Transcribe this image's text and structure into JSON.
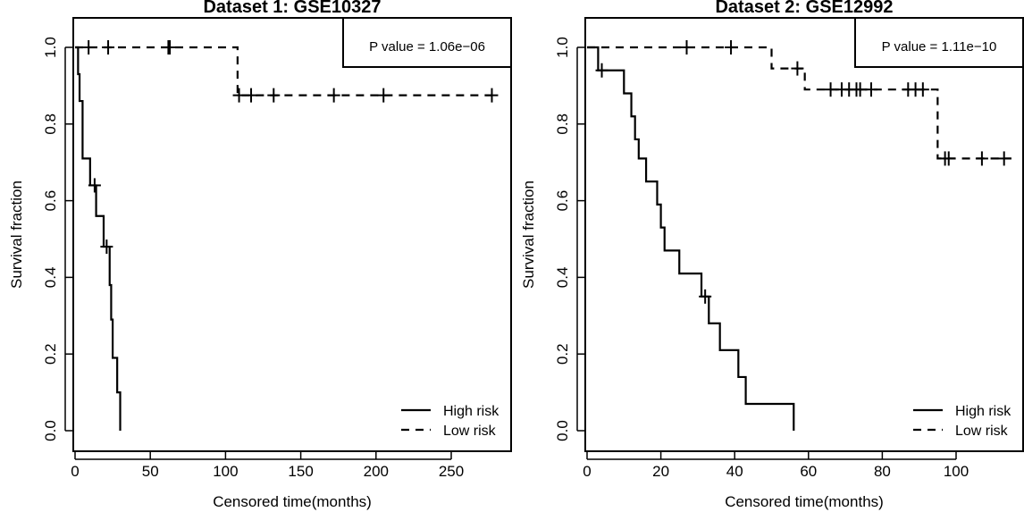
{
  "chart_data": [
    {
      "type": "line",
      "title": "Dataset 1: GSE10327",
      "xlabel": "Censored time(months)",
      "ylabel": "Survival fraction",
      "xlim": [
        0,
        285
      ],
      "ylim": [
        0,
        1
      ],
      "xticks": [
        0,
        50,
        100,
        150,
        200,
        250
      ],
      "yticks": [
        0.0,
        0.2,
        0.4,
        0.6,
        0.8,
        1.0
      ],
      "ytick_labels": [
        "0.0",
        "0.2",
        "0.4",
        "0.6",
        "0.8",
        "1.0"
      ],
      "grid": false,
      "annotation": "P value = 1.06e−06",
      "legend": {
        "position": "bottom-right",
        "entries": [
          "High risk",
          "Low risk"
        ]
      },
      "series": [
        {
          "name": "High risk",
          "line_style": "solid",
          "steps": [
            [
              0,
              1.0
            ],
            [
              2,
              0.93
            ],
            [
              3,
              0.86
            ],
            [
              5,
              0.71
            ],
            [
              10,
              0.64
            ],
            [
              14,
              0.56
            ],
            [
              19,
              0.48
            ],
            [
              23,
              0.38
            ],
            [
              24,
              0.29
            ],
            [
              25,
              0.19
            ],
            [
              28,
              0.1
            ],
            [
              30,
              0.0
            ]
          ],
          "end_x": 30,
          "censored": [
            [
              13,
              0.64
            ],
            [
              21,
              0.48
            ]
          ]
        },
        {
          "name": "Low risk",
          "line_style": "dashed",
          "steps": [
            [
              0,
              1.0
            ],
            [
              108,
              0.875
            ]
          ],
          "end_x": 277,
          "censored": [
            [
              9,
              1.0
            ],
            [
              22,
              1.0
            ],
            [
              62,
              1.0
            ],
            [
              63,
              1.0
            ],
            [
              109,
              0.875
            ],
            [
              117,
              0.875
            ],
            [
              132,
              0.875
            ],
            [
              172,
              0.875
            ],
            [
              205,
              0.875
            ],
            [
              277,
              0.875
            ]
          ]
        }
      ]
    },
    {
      "type": "line",
      "title": "Dataset 2: GSE12992",
      "xlabel": "Censored time(months)",
      "ylabel": "Survival fraction",
      "xlim": [
        0,
        117
      ],
      "ylim": [
        0,
        1
      ],
      "xticks": [
        0,
        20,
        40,
        60,
        80,
        100
      ],
      "yticks": [
        0.0,
        0.2,
        0.4,
        0.6,
        0.8,
        1.0
      ],
      "ytick_labels": [
        "0.0",
        "0.2",
        "0.4",
        "0.6",
        "0.8",
        "1.0"
      ],
      "grid": false,
      "annotation": "P value = 1.11e−10",
      "legend": {
        "position": "bottom-right",
        "entries": [
          "High risk",
          "Low risk"
        ]
      },
      "series": [
        {
          "name": "High risk",
          "line_style": "solid",
          "steps": [
            [
              0,
              1.0
            ],
            [
              3,
              0.94
            ],
            [
              10,
              0.88
            ],
            [
              12,
              0.82
            ],
            [
              13,
              0.76
            ],
            [
              14,
              0.71
            ],
            [
              16,
              0.65
            ],
            [
              19,
              0.59
            ],
            [
              20,
              0.53
            ],
            [
              21,
              0.47
            ],
            [
              25,
              0.41
            ],
            [
              31,
              0.35
            ],
            [
              33,
              0.28
            ],
            [
              36,
              0.21
            ],
            [
              41,
              0.14
            ],
            [
              43,
              0.07
            ],
            [
              56,
              0.0
            ]
          ],
          "end_x": 56,
          "censored": [
            [
              4,
              0.94
            ],
            [
              32,
              0.35
            ]
          ]
        },
        {
          "name": "Low risk",
          "line_style": "dashed",
          "steps": [
            [
              0,
              1.0
            ],
            [
              50,
              0.945
            ],
            [
              59,
              0.89
            ],
            [
              95,
              0.71
            ]
          ],
          "end_x": 115,
          "censored": [
            [
              27,
              1.0
            ],
            [
              39,
              1.0
            ],
            [
              57,
              0.945
            ],
            [
              66,
              0.89
            ],
            [
              69,
              0.89
            ],
            [
              71,
              0.89
            ],
            [
              73,
              0.89
            ],
            [
              74,
              0.89
            ],
            [
              77,
              0.89
            ],
            [
              87,
              0.89
            ],
            [
              89,
              0.89
            ],
            [
              91,
              0.89
            ],
            [
              97,
              0.71
            ],
            [
              98,
              0.71
            ],
            [
              107,
              0.71
            ],
            [
              113,
              0.71
            ]
          ]
        }
      ]
    }
  ]
}
